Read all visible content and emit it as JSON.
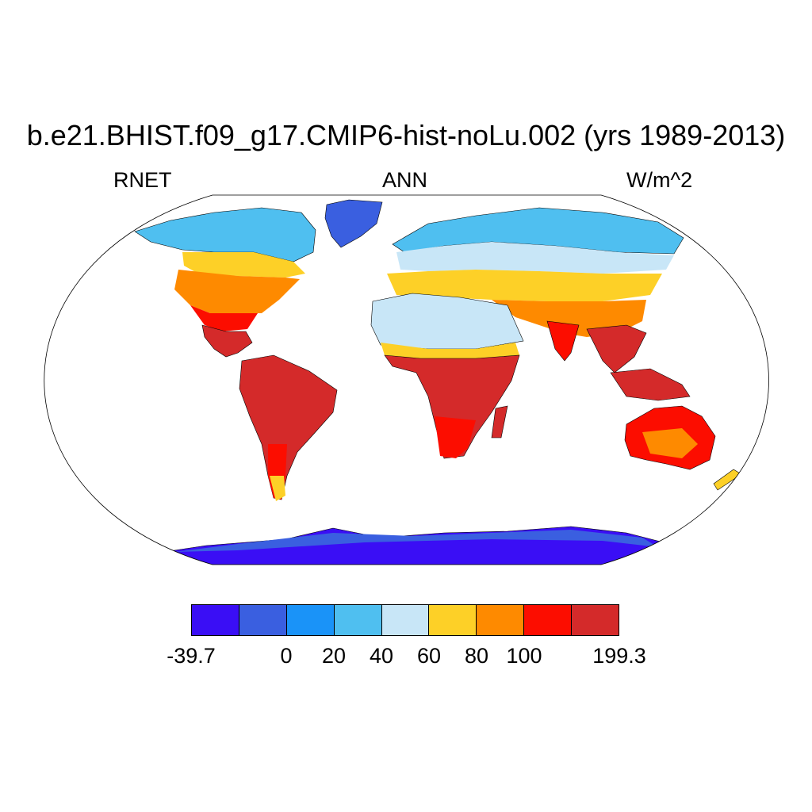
{
  "title": "b.e21.BHIST.f09_g17.CMIP6-hist-noLu.002 (yrs 1989-2013)",
  "subtitle_left": "RNET",
  "subtitle_center": "ANN",
  "subtitle_right": "W/m^2",
  "colorbar": {
    "colors": [
      "#3a0ef5",
      "#3a5fe0",
      "#1a93f8",
      "#4fbff0",
      "#c8e6f7",
      "#fdd027",
      "#fe8a00",
      "#fc0d00",
      "#d42a2a"
    ],
    "labels": [
      "-39.7",
      "0",
      "20",
      "40",
      "60",
      "80",
      "100",
      "199.3"
    ]
  },
  "colors": {
    "ocean": "#ffffff",
    "coastline": "#000000"
  }
}
